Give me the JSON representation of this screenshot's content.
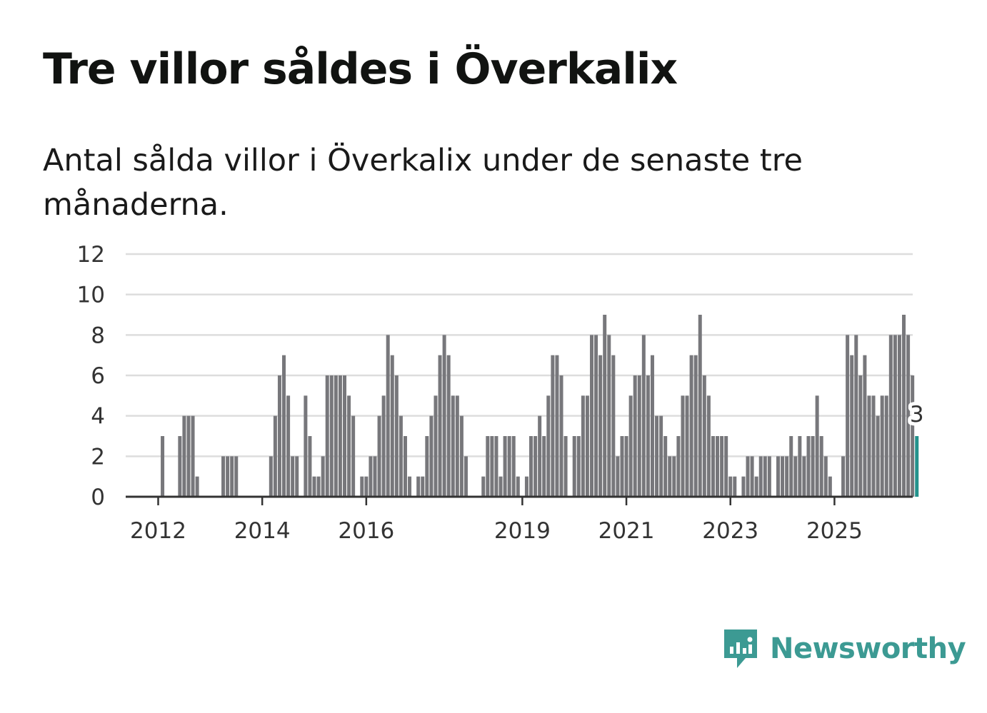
{
  "title": "Tre villor såldes i Överkalix",
  "subtitle": "Antal sålda villor i Överkalix under de senaste tre månaderna.",
  "brand": {
    "name": "Newsworthy",
    "color": "#3c9a93"
  },
  "colors": {
    "bar": "#77777b",
    "highlight": "#23928c",
    "grid": "#dddddd",
    "axis": "#333333"
  },
  "chart_data": {
    "type": "bar",
    "title": "Tre villor såldes i Överkalix",
    "xlabel": "",
    "ylabel": "",
    "ylim": [
      0,
      12
    ],
    "yticks": [
      0,
      2,
      4,
      6,
      8,
      10,
      12
    ],
    "x_start": "2011-06",
    "xticks": [
      {
        "label": "2012",
        "index": 7
      },
      {
        "label": "2014",
        "index": 31
      },
      {
        "label": "2016",
        "index": 55
      },
      {
        "label": "2019",
        "index": 91
      },
      {
        "label": "2021",
        "index": 115
      },
      {
        "label": "2023",
        "index": 139
      },
      {
        "label": "2025",
        "index": 163
      }
    ],
    "values": [
      0,
      0,
      0,
      0,
      0,
      0,
      0,
      0,
      3,
      0,
      0,
      0,
      3,
      4,
      4,
      4,
      1,
      0,
      0,
      0,
      0,
      0,
      2,
      2,
      2,
      2,
      0,
      0,
      0,
      0,
      0,
      0,
      0,
      2,
      4,
      6,
      7,
      5,
      2,
      2,
      0,
      5,
      3,
      1,
      1,
      2,
      6,
      6,
      6,
      6,
      6,
      5,
      4,
      0,
      1,
      1,
      2,
      2,
      4,
      5,
      8,
      7,
      6,
      4,
      3,
      1,
      0,
      1,
      1,
      3,
      4,
      5,
      7,
      8,
      7,
      5,
      5,
      4,
      2,
      0,
      0,
      0,
      1,
      3,
      3,
      3,
      1,
      3,
      3,
      3,
      1,
      0,
      1,
      3,
      3,
      4,
      3,
      5,
      7,
      7,
      6,
      3,
      0,
      3,
      3,
      5,
      5,
      8,
      8,
      7,
      9,
      8,
      7,
      2,
      3,
      3,
      5,
      6,
      6,
      8,
      6,
      7,
      4,
      4,
      3,
      2,
      2,
      3,
      5,
      5,
      7,
      7,
      9,
      6,
      5,
      3,
      3,
      3,
      3,
      1,
      1,
      0,
      1,
      2,
      2,
      1,
      2,
      2,
      2,
      0,
      2,
      2,
      2,
      3,
      2,
      3,
      2,
      3,
      3,
      5,
      3,
      2,
      1,
      0,
      0,
      2,
      8,
      7,
      8,
      6,
      7,
      5,
      5,
      4,
      5,
      5,
      8,
      8,
      8,
      9,
      8,
      6,
      3
    ],
    "highlight_last": true,
    "annotation": {
      "label": "3",
      "value": 3
    }
  }
}
